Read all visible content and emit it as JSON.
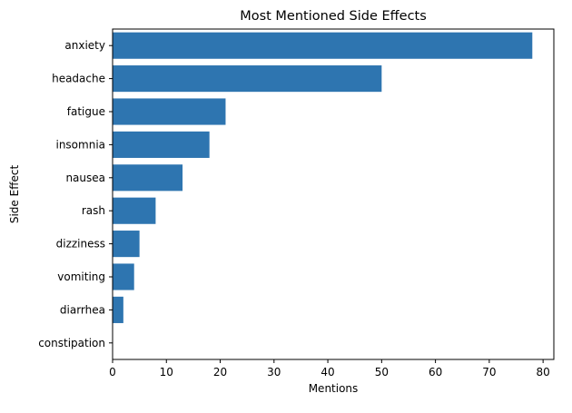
{
  "chart_data": {
    "type": "bar",
    "orientation": "horizontal",
    "title": "Most Mentioned Side Effects",
    "xlabel": "Mentions",
    "ylabel": "Side Effect",
    "categories": [
      "anxiety",
      "headache",
      "fatigue",
      "insomnia",
      "nausea",
      "rash",
      "dizziness",
      "vomiting",
      "diarrhea",
      "constipation"
    ],
    "values": [
      78,
      50,
      21,
      18,
      13,
      8,
      5,
      4,
      2,
      0
    ],
    "xlim": [
      0,
      82
    ],
    "xticks": [
      "0",
      "10",
      "20",
      "30",
      "40",
      "50",
      "60",
      "70",
      "80"
    ],
    "bar_color": "#2e75b0",
    "grid": false,
    "legend": "none"
  }
}
